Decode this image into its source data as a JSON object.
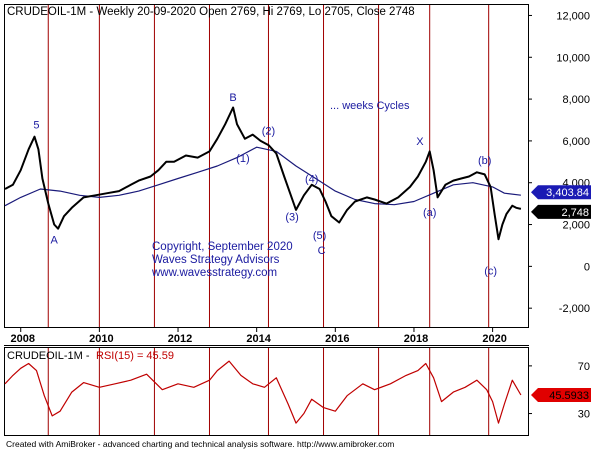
{
  "header": {
    "symbol": "CRUDEOIL-1M",
    "text": "CRUDEOIL-1M - Weekly 20-09-2020 Open 2769, Hi 2769, Lo 2705, Close 2748"
  },
  "rsi_header": {
    "prefix": "CRUDEOIL-1M - ",
    "label": "RSI(15) = 45.59"
  },
  "footer": {
    "text": "Created with AmiBroker - advanced charting and technical analysis software. http://www.amibroker.com"
  },
  "copyright": {
    "line1": "Copyright, September 2020",
    "line2": "Waves Strategy Advisors",
    "line3": "www.wavesstrategy.com"
  },
  "cycles_label": "... weeks Cycles",
  "colors": {
    "price": "#000000",
    "moving_average": "#1a1a7a",
    "cycle_lines": "#a00000",
    "rsi": "#c00000",
    "annotation": "#1a1aa0",
    "ma_label_bg": "#1a1ab4",
    "last_label_bg": "#000000",
    "rsi_label_bg": "#e00000",
    "grid": "#000000"
  },
  "chart_data": [
    {
      "type": "line",
      "title": "CRUDEOIL-1M - Weekly 20-09-2020 Open 2769, Hi 2769, Lo 2705, Close 2748",
      "ylim": [
        -2900,
        12500
      ],
      "xlim": [
        2007.6,
        2020.9
      ],
      "yticks": [
        12000,
        10000,
        8000,
        6000,
        4000,
        2000,
        0,
        -2000
      ],
      "ytick_labels": [
        "12,000",
        "10,000",
        "8,000",
        "6,000",
        "4,000",
        "2,000",
        "0",
        "-2,000"
      ],
      "xticks": [
        2008,
        2010,
        2012,
        2014,
        2016,
        2018,
        2020
      ],
      "xtick_labels": [
        "2008",
        "2010",
        "2012",
        "2014",
        "2016",
        "2018",
        "2020"
      ],
      "grid": false,
      "series": [
        {
          "x": [
            2007.6,
            2007.8,
            2008.0,
            2008.2,
            2008.35,
            2008.45,
            2008.55,
            2008.7,
            2008.85,
            2008.95,
            2009.1,
            2009.3,
            2009.6,
            2009.9,
            2010.2,
            2010.5,
            2010.8,
            2011.0,
            2011.3,
            2011.5,
            2011.7,
            2011.9,
            2012.2,
            2012.5,
            2012.8,
            2013.0,
            2013.2,
            2013.4,
            2013.5,
            2013.7,
            2013.9,
            2014.1,
            2014.3,
            2014.5,
            2014.7,
            2014.85,
            2015.0,
            2015.2,
            2015.4,
            2015.6,
            2015.75,
            2015.9,
            2016.1,
            2016.3,
            2016.5,
            2016.8,
            2017.0,
            2017.3,
            2017.6,
            2017.9,
            2018.1,
            2018.3,
            2018.4,
            2018.5,
            2018.6,
            2018.8,
            2019.0,
            2019.2,
            2019.4,
            2019.6,
            2019.8,
            2019.95,
            2020.05,
            2020.15,
            2020.25,
            2020.35,
            2020.5,
            2020.6,
            2020.72
          ],
          "y": [
            3700,
            3900,
            4600,
            5600,
            6200,
            5600,
            4200,
            3000,
            2000,
            1800,
            2400,
            2800,
            3300,
            3400,
            3500,
            3600,
            3900,
            4100,
            4300,
            4600,
            5000,
            5000,
            5300,
            5200,
            5500,
            6100,
            6800,
            7600,
            6800,
            6100,
            6300,
            6000,
            5800,
            5400,
            4300,
            3500,
            2700,
            3400,
            3900,
            3700,
            3100,
            2400,
            2100,
            2700,
            3100,
            3300,
            3200,
            3000,
            3300,
            3800,
            4300,
            5000,
            5500,
            4600,
            3300,
            3900,
            4100,
            4200,
            4300,
            4500,
            4400,
            3800,
            2500,
            1300,
            2000,
            2500,
            2900,
            2800,
            2748
          ]
        },
        {
          "x": [
            2007.6,
            2008.0,
            2008.5,
            2009.0,
            2009.5,
            2010.0,
            2010.5,
            2011.0,
            2011.5,
            2012.0,
            2012.5,
            2013.0,
            2013.5,
            2014.0,
            2014.5,
            2015.0,
            2015.5,
            2016.0,
            2016.5,
            2017.0,
            2017.5,
            2018.0,
            2018.5,
            2019.0,
            2019.5,
            2020.0,
            2020.3,
            2020.72
          ],
          "y": [
            2900,
            3300,
            3700,
            3600,
            3400,
            3300,
            3400,
            3600,
            3900,
            4200,
            4500,
            4800,
            5200,
            5700,
            5500,
            4800,
            4200,
            3600,
            3200,
            3000,
            2950,
            3100,
            3500,
            3900,
            4000,
            3800,
            3500,
            3404
          ]
        }
      ],
      "cycle_lines_x": [
        2008.7,
        2010.0,
        2011.4,
        2012.8,
        2014.3,
        2015.7,
        2017.1,
        2018.4,
        2019.9
      ],
      "wave_labels": [
        {
          "text": "5",
          "x": 2008.4,
          "y": 6600
        },
        {
          "text": "A",
          "x": 2008.85,
          "y": 1100
        },
        {
          "text": "B",
          "x": 2013.4,
          "y": 7900
        },
        {
          "text": "(1)",
          "x": 2013.65,
          "y": 5000
        },
        {
          "text": "(2)",
          "x": 2014.3,
          "y": 6300
        },
        {
          "text": "(3)",
          "x": 2014.9,
          "y": 2200
        },
        {
          "text": "(4)",
          "x": 2015.4,
          "y": 4000
        },
        {
          "text": "(5)",
          "x": 2015.6,
          "y": 1300
        },
        {
          "text": "C",
          "x": 2015.65,
          "y": 600
        },
        {
          "text": "X",
          "x": 2018.15,
          "y": 5800
        },
        {
          "text": "(a)",
          "x": 2018.4,
          "y": 2400
        },
        {
          "text": "(b)",
          "x": 2019.8,
          "y": 4900
        },
        {
          "text": "(c)",
          "x": 2019.95,
          "y": -400
        }
      ],
      "last_values": {
        "moving_average": "3,403.84",
        "close": "2,748"
      }
    },
    {
      "type": "line",
      "title": "RSI(15) = 45.59",
      "ylim": [
        12,
        85
      ],
      "xlim": [
        2007.6,
        2020.9
      ],
      "yticks": [
        70,
        30
      ],
      "ytick_labels": [
        "70",
        "30"
      ],
      "series": [
        {
          "name": "RSI(15)",
          "x": [
            2007.6,
            2007.8,
            2008.0,
            2008.2,
            2008.4,
            2008.6,
            2008.8,
            2009.0,
            2009.3,
            2009.6,
            2010.0,
            2010.4,
            2010.8,
            2011.2,
            2011.6,
            2012.0,
            2012.4,
            2012.8,
            2013.0,
            2013.3,
            2013.6,
            2013.9,
            2014.2,
            2014.5,
            2014.8,
            2015.0,
            2015.2,
            2015.4,
            2015.7,
            2016.0,
            2016.3,
            2016.7,
            2017.0,
            2017.4,
            2017.8,
            2018.1,
            2018.3,
            2018.5,
            2018.7,
            2019.0,
            2019.3,
            2019.6,
            2019.85,
            2020.0,
            2020.15,
            2020.3,
            2020.5,
            2020.72
          ],
          "y": [
            55,
            62,
            68,
            72,
            66,
            45,
            28,
            32,
            48,
            56,
            52,
            55,
            58,
            63,
            50,
            55,
            52,
            58,
            66,
            74,
            62,
            55,
            52,
            60,
            38,
            22,
            30,
            42,
            35,
            32,
            45,
            55,
            50,
            55,
            62,
            66,
            72,
            60,
            40,
            48,
            52,
            58,
            50,
            40,
            22,
            38,
            58,
            45.59
          ]
        }
      ],
      "last_value": "45.5933"
    }
  ]
}
